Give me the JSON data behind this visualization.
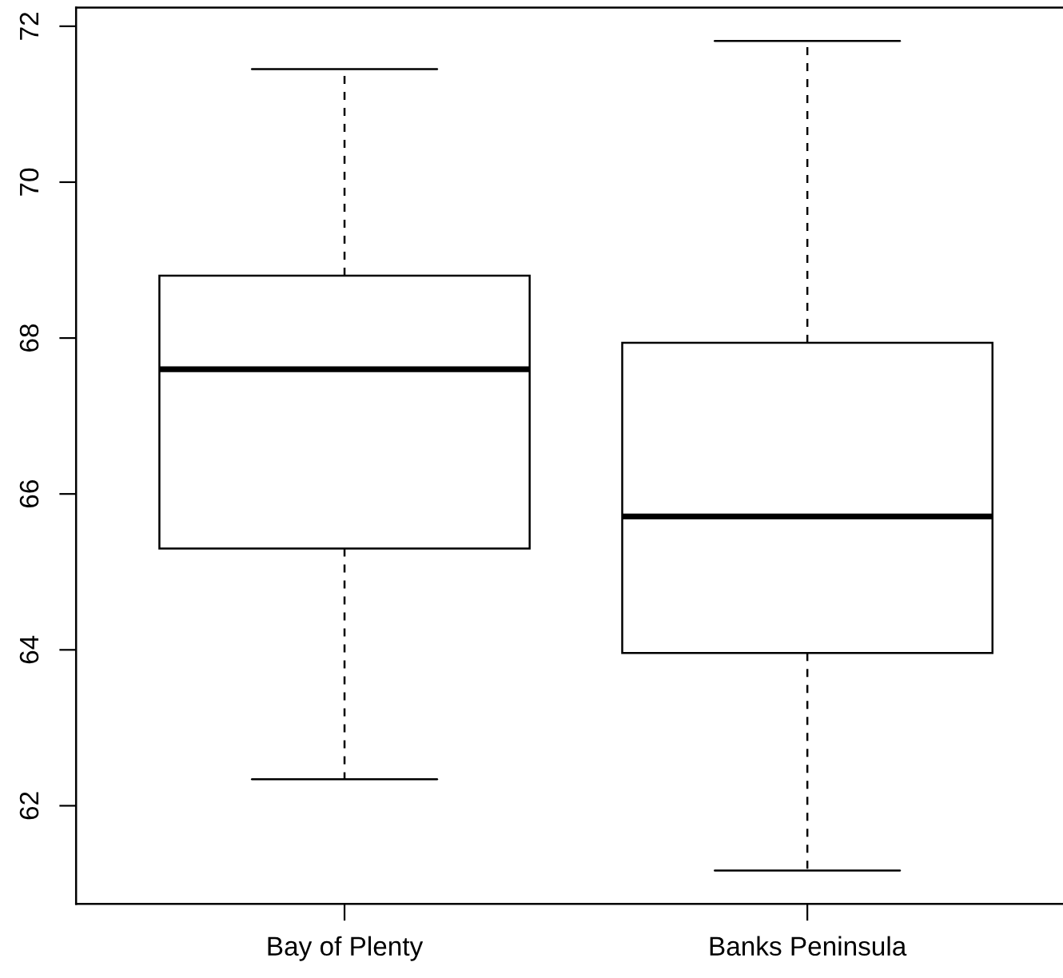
{
  "chart_data": {
    "type": "box",
    "categories": [
      "Bay of Plenty",
      "Banks Peninsula"
    ],
    "boxes": [
      {
        "low": 62.34,
        "q1": 65.3,
        "median": 67.6,
        "q3": 68.8,
        "high": 71.45
      },
      {
        "low": 61.17,
        "q1": 63.96,
        "median": 65.71,
        "q3": 67.94,
        "high": 71.81
      }
    ],
    "ylim": [
      60.74,
      72.24
    ],
    "yticks": [
      62,
      64,
      66,
      68,
      70,
      72
    ]
  }
}
